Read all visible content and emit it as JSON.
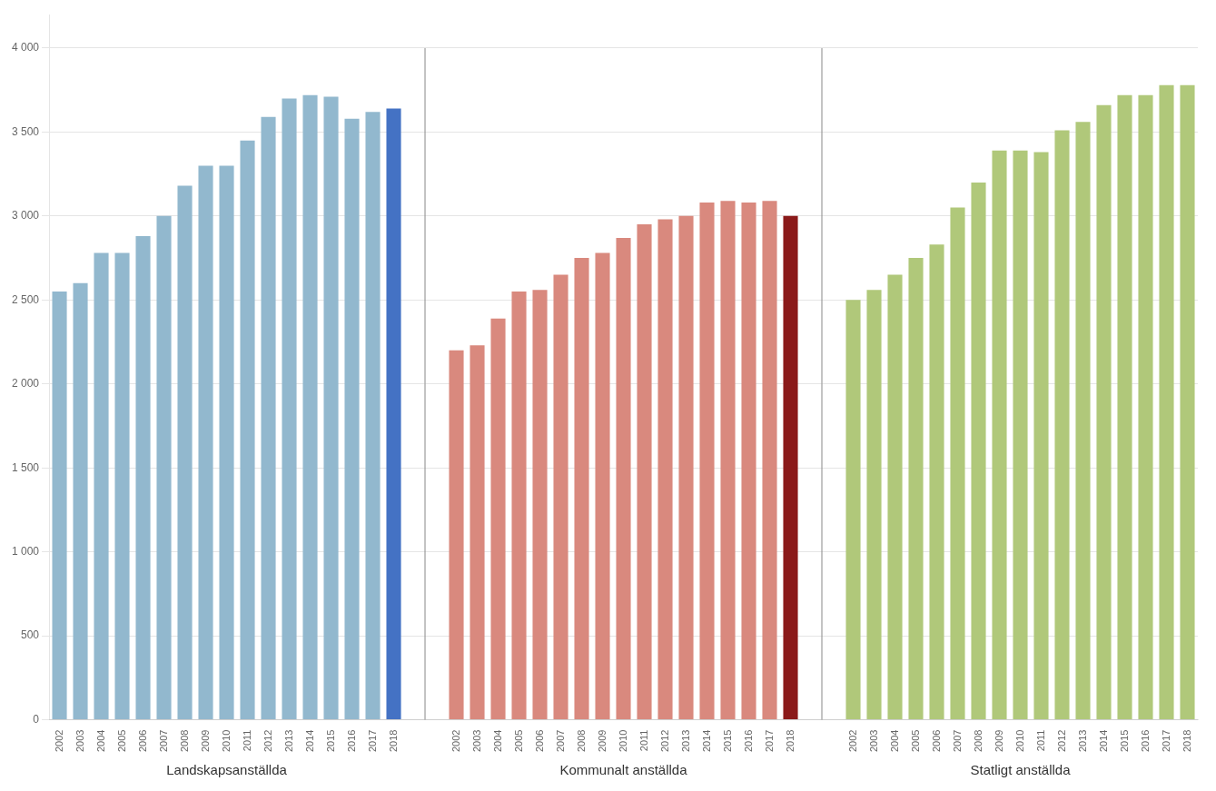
{
  "chart_data": {
    "type": "bar",
    "categories": [
      "2002",
      "2003",
      "2004",
      "2005",
      "2006",
      "2007",
      "2008",
      "2009",
      "2010",
      "2011",
      "2012",
      "2013",
      "2014",
      "2015",
      "2016",
      "2017",
      "2018"
    ],
    "series": [
      {
        "name": "Landskapsanställda",
        "values": [
          2550,
          2600,
          2780,
          2780,
          2880,
          3000,
          3180,
          3300,
          3300,
          3450,
          3590,
          3700,
          3720,
          3710,
          3580,
          3620,
          3640
        ],
        "colors": [
          "#92B8CE",
          "#92B8CE",
          "#92B8CE",
          "#92B8CE",
          "#92B8CE",
          "#92B8CE",
          "#92B8CE",
          "#92B8CE",
          "#92B8CE",
          "#92B8CE",
          "#92B8CE",
          "#92B8CE",
          "#92B8CE",
          "#92B8CE",
          "#92B8CE",
          "#92B8CE",
          "#4472C4"
        ]
      },
      {
        "name": "Kommunalt anställda",
        "values": [
          2200,
          2230,
          2390,
          2550,
          2560,
          2650,
          2750,
          2780,
          2870,
          2950,
          2980,
          3000,
          3080,
          3090,
          3080,
          3090,
          3000
        ],
        "colors": [
          "#D9897E",
          "#D9897E",
          "#D9897E",
          "#D9897E",
          "#D9897E",
          "#D9897E",
          "#D9897E",
          "#D9897E",
          "#D9897E",
          "#D9897E",
          "#D9897E",
          "#D9897E",
          "#D9897E",
          "#D9897E",
          "#D9897E",
          "#D9897E",
          "#8B1A1A"
        ]
      },
      {
        "name": "Statligt anställda",
        "values": [
          2500,
          2560,
          2650,
          2750,
          2830,
          3050,
          3200,
          3390,
          3390,
          3380,
          3510,
          3560,
          3660,
          3720,
          3720,
          3780,
          3780
        ],
        "colors": [
          "#B0C87A",
          "#B0C87A",
          "#B0C87A",
          "#B0C87A",
          "#B0C87A",
          "#B0C87A",
          "#B0C87A",
          "#B0C87A",
          "#B0C87A",
          "#B0C87A",
          "#B0C87A",
          "#B0C87A",
          "#B0C87A",
          "#B0C87A",
          "#B0C87A",
          "#B0C87A",
          "#B0C87A"
        ]
      }
    ],
    "ylim": [
      0,
      4200
    ],
    "yticks": [
      0,
      500,
      {
        "value": 1000,
        "label": "1 000"
      },
      {
        "value": 1500,
        "label": "1 500"
      },
      {
        "value": 2000,
        "label": "2 000"
      },
      {
        "value": 2500,
        "label": "2 500"
      },
      {
        "value": 3000,
        "label": "3 000"
      },
      {
        "value": 3500,
        "label": "3 500"
      },
      {
        "value": 4000,
        "label": "4 000"
      }
    ],
    "grid": true
  }
}
